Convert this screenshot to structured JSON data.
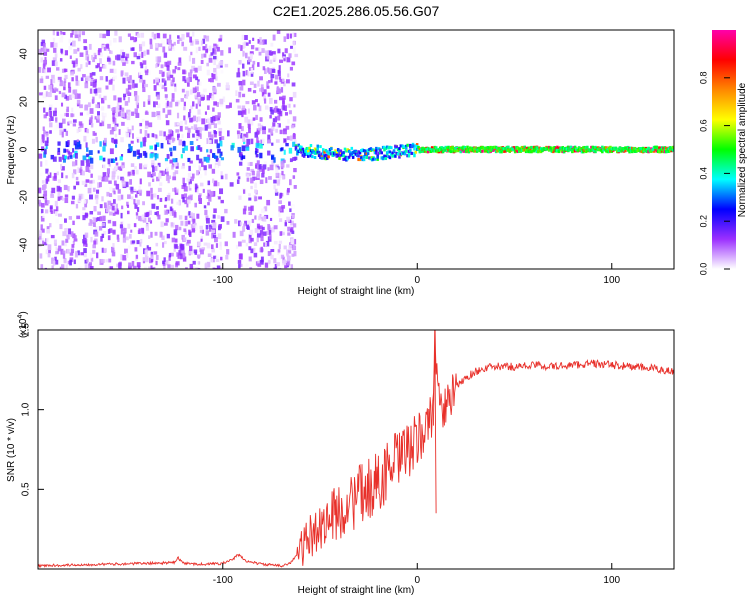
{
  "title": "C2E1.2025.286.05.56.G07",
  "chart_data": [
    {
      "type": "heatmap",
      "name": "spectrogram",
      "xlabel": "Height of straight line (km)",
      "ylabel": "Frequency (Hz)",
      "xlim": [
        -195,
        132
      ],
      "ylim": [
        -50,
        50
      ],
      "xticks": [
        -100,
        0,
        100
      ],
      "yticks": [
        -40,
        -20,
        0,
        20,
        40
      ],
      "noise_region_km": [
        -195,
        -63
      ],
      "gap_region_km": [
        -101,
        -93
      ],
      "signal_start_km": -63,
      "signal_frequency_hz": 0,
      "colorbar": {
        "label": "Normalized spectral amplitude",
        "range": [
          0,
          1
        ],
        "ticks": [
          0.0,
          0.2,
          0.4,
          0.6,
          0.8
        ],
        "colors": [
          "#ffffff",
          "#9b30ff",
          "#0000ff",
          "#00ffff",
          "#00ff00",
          "#ffff00",
          "#ff8800",
          "#ff0000",
          "#ff00aa"
        ]
      }
    },
    {
      "type": "line",
      "name": "snr",
      "xlabel": "Height of straight line (km)",
      "ylabel": "SNR (10 * v/v)",
      "y_multiplier": "(x10",
      "y_multiplier_exp": "4",
      "y_multiplier_close": ")",
      "xlim": [
        -195,
        132
      ],
      "ylim": [
        0,
        1.5
      ],
      "xticks": [
        -100,
        0,
        100
      ],
      "yticks": [
        0.5,
        1.0,
        1.5
      ],
      "ytick_labels": [
        "0.5",
        "1.0",
        "1.5"
      ],
      "color": "#e8302a",
      "series": [
        {
          "name": "SNR",
          "x": [
            -195,
            -180,
            -160,
            -140,
            -125,
            -123,
            -120,
            -110,
            -100,
            -95,
            -92,
            -88,
            -80,
            -70,
            -65,
            -60,
            -55,
            -50,
            -45,
            -40,
            -35,
            -30,
            -25,
            -20,
            -15,
            -10,
            -5,
            0,
            4,
            8,
            9,
            12,
            16,
            20,
            25,
            30,
            35,
            40,
            50,
            60,
            70,
            80,
            90,
            100,
            110,
            120,
            132
          ],
          "values": [
            0.02,
            0.025,
            0.03,
            0.035,
            0.04,
            0.07,
            0.035,
            0.03,
            0.035,
            0.06,
            0.09,
            0.05,
            0.03,
            0.02,
            0.04,
            0.12,
            0.2,
            0.27,
            0.32,
            0.36,
            0.4,
            0.46,
            0.5,
            0.55,
            0.62,
            0.68,
            0.74,
            0.8,
            0.88,
            0.96,
            1.5,
            0.98,
            1.05,
            1.14,
            1.2,
            1.24,
            1.26,
            1.27,
            1.27,
            1.28,
            1.27,
            1.28,
            1.29,
            1.28,
            1.27,
            1.26,
            1.24
          ]
        }
      ]
    }
  ]
}
